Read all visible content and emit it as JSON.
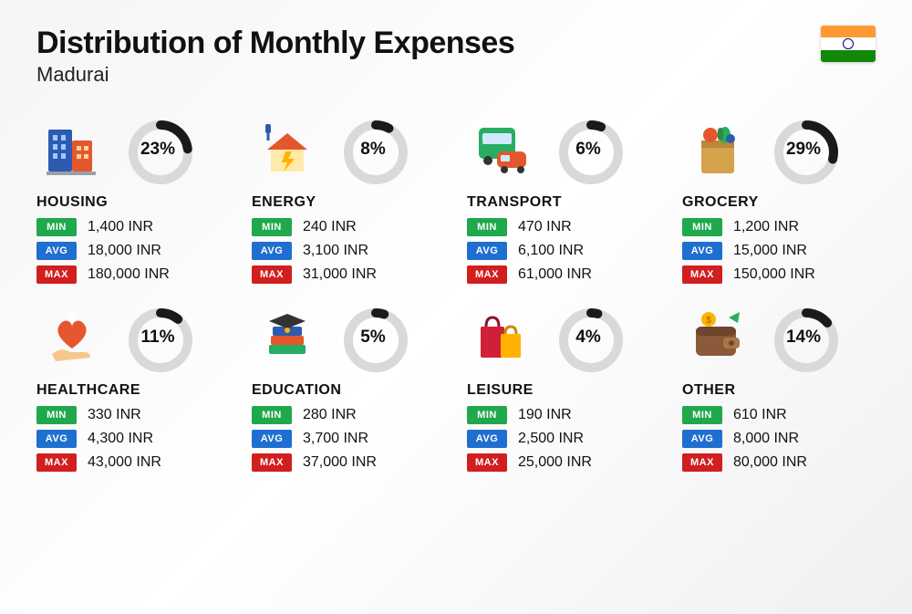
{
  "title": "Distribution of Monthly Expenses",
  "subtitle": "Madurai",
  "currency": "INR",
  "flag": {
    "top_color": "#FF9933",
    "mid_color": "#FFFFFF",
    "bot_color": "#138808",
    "chakra_color": "#000080"
  },
  "donut": {
    "radius": 30,
    "stroke_width": 10,
    "track_color": "#d9d9d9",
    "fill_color": "#1a1a1a",
    "pct_fontsize": 19
  },
  "badges": {
    "min": {
      "label": "MIN",
      "bg": "#1fa84c"
    },
    "avg": {
      "label": "AVG",
      "bg": "#1f6fd1"
    },
    "max": {
      "label": "MAX",
      "bg": "#d11f1f"
    }
  },
  "categories": [
    {
      "key": "housing",
      "name": "HOUSING",
      "pct": 23,
      "min": "1,400",
      "avg": "18,000",
      "max": "180,000",
      "icon": "buildings"
    },
    {
      "key": "energy",
      "name": "ENERGY",
      "pct": 8,
      "min": "240",
      "avg": "3,100",
      "max": "31,000",
      "icon": "energy-house"
    },
    {
      "key": "transport",
      "name": "TRANSPORT",
      "pct": 6,
      "min": "470",
      "avg": "6,100",
      "max": "61,000",
      "icon": "bus-car"
    },
    {
      "key": "grocery",
      "name": "GROCERY",
      "pct": 29,
      "min": "1,200",
      "avg": "15,000",
      "max": "150,000",
      "icon": "grocery-bag"
    },
    {
      "key": "healthcare",
      "name": "HEALTHCARE",
      "pct": 11,
      "min": "330",
      "avg": "4,300",
      "max": "43,000",
      "icon": "heart-hand"
    },
    {
      "key": "education",
      "name": "EDUCATION",
      "pct": 5,
      "min": "280",
      "avg": "3,700",
      "max": "37,000",
      "icon": "grad-books"
    },
    {
      "key": "leisure",
      "name": "LEISURE",
      "pct": 4,
      "min": "190",
      "avg": "2,500",
      "max": "25,000",
      "icon": "shopping-bags"
    },
    {
      "key": "other",
      "name": "OTHER",
      "pct": 14,
      "min": "610",
      "avg": "8,000",
      "max": "80,000",
      "icon": "wallet"
    }
  ]
}
